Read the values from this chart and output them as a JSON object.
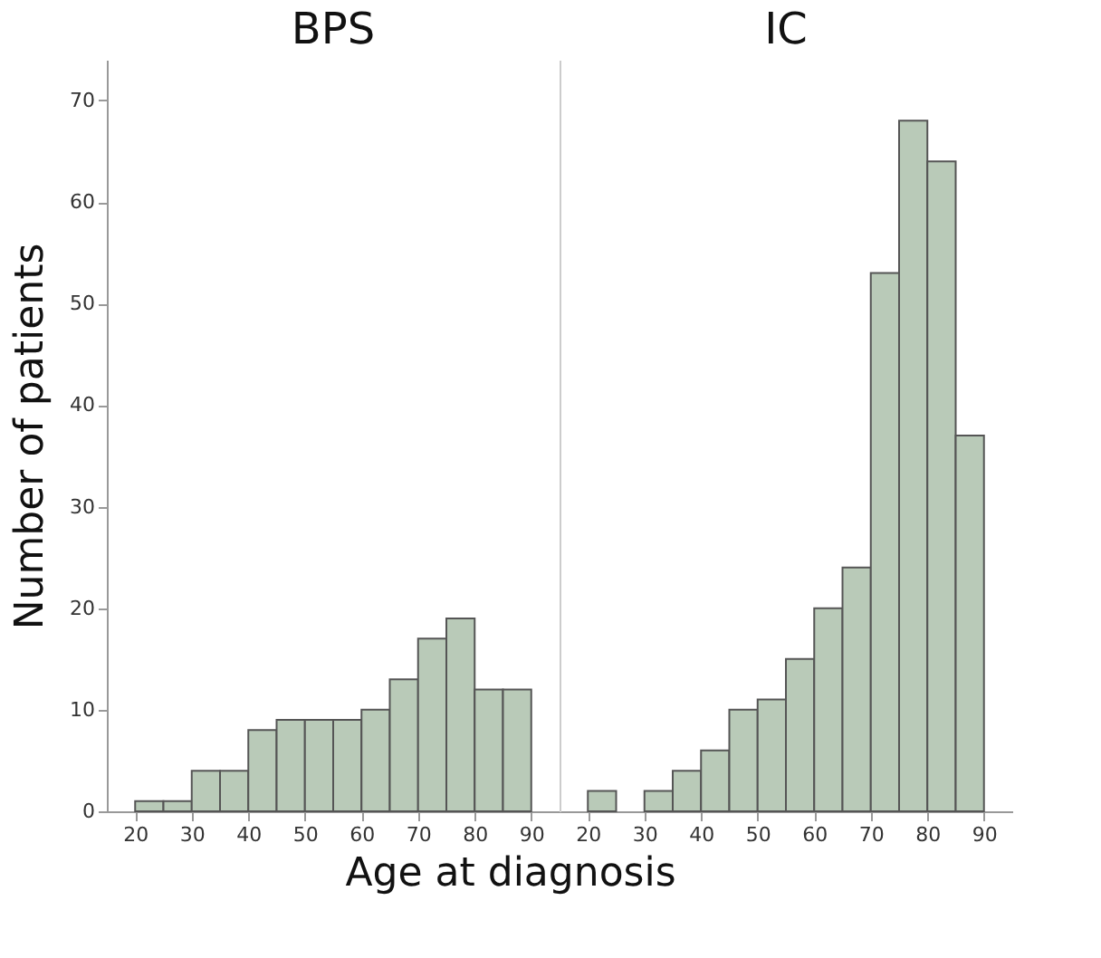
{
  "chart_data": [
    {
      "type": "histogram",
      "title": "BPS",
      "xlabel": "Age at diagnosis",
      "ylabel": "Number of patients",
      "color": "#b9cab8",
      "bins": [
        20,
        25,
        30,
        35,
        40,
        45,
        50,
        55,
        60,
        65,
        70,
        75,
        80,
        85,
        90
      ],
      "values": [
        1,
        1,
        4,
        4,
        8,
        9,
        9,
        9,
        10,
        13,
        17,
        19,
        12,
        12
      ],
      "xlim": [
        15,
        95
      ],
      "xticks": [
        20,
        30,
        40,
        50,
        60,
        70,
        80,
        90
      ],
      "ylim": [
        0,
        74
      ],
      "yticks": [
        0,
        10,
        20,
        30,
        40,
        50,
        60,
        70
      ],
      "grid": false
    },
    {
      "type": "histogram",
      "title": "IC",
      "color": "#b9cab8",
      "bins": [
        20,
        25,
        30,
        35,
        40,
        45,
        50,
        55,
        60,
        65,
        70,
        75,
        80,
        85,
        90
      ],
      "values": [
        2,
        0,
        2,
        4,
        6,
        10,
        11,
        15,
        20,
        24,
        53,
        68,
        64,
        37
      ],
      "xlim": [
        15,
        95
      ],
      "xticks": [
        20,
        30,
        40,
        50,
        60,
        70,
        80,
        90
      ],
      "ylim": [
        0,
        74
      ],
      "tick_labels": "x",
      "grid": false
    }
  ]
}
